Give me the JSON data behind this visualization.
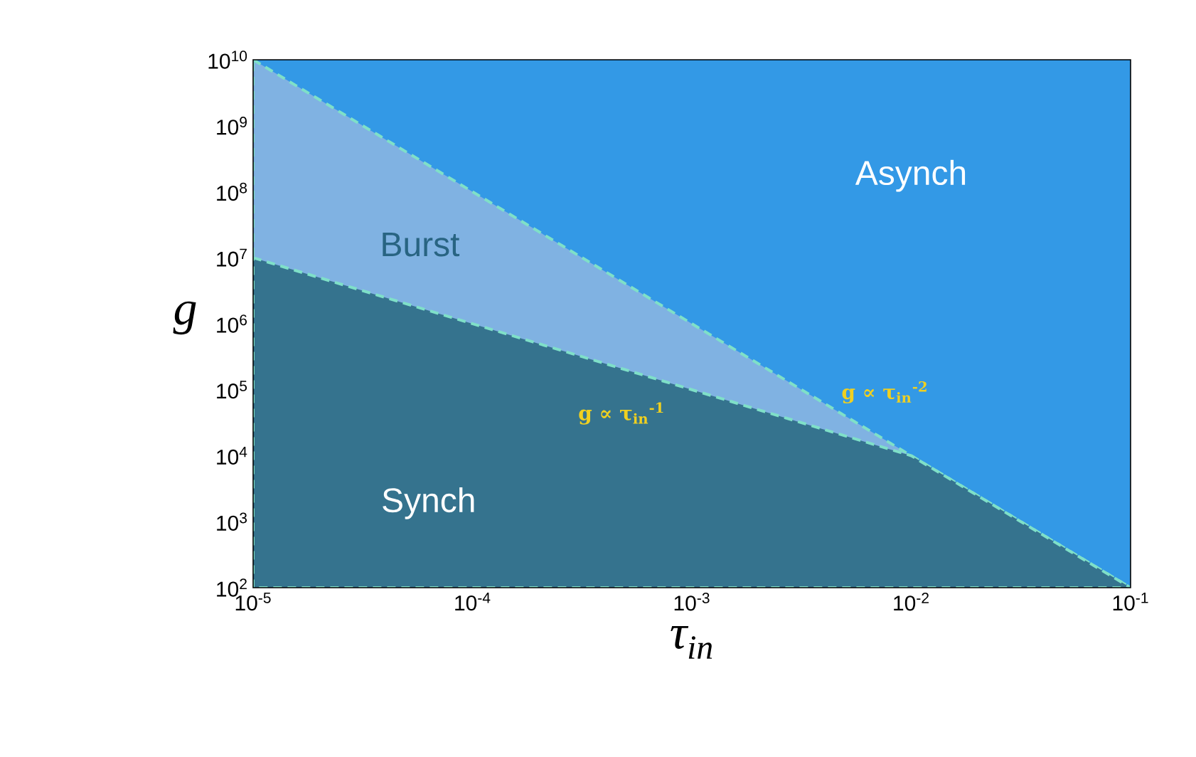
{
  "chart_data": {
    "type": "area",
    "log": "xy",
    "xlabel": "τ$_{in}$",
    "ylabel": "g",
    "x": [
      1e-05,
      0.01,
      0.1
    ],
    "series": [
      {
        "values": [
          10000000000,
          10000,
          100
        ],
        "color": "#80b2e2",
        "line_style": "dashed"
      },
      {
        "values": [
          10000000,
          10000,
          100
        ],
        "color": "#35738e",
        "line_style": "dashed"
      }
    ],
    "xlim": [
      1e-05,
      0.1
    ],
    "ylim": [
      100,
      10000000000
    ],
    "xticks": [
      {
        "value": 1e-05,
        "label": "10$^{-5}$"
      },
      {
        "value": 0.0001,
        "label": "10$^{-4}$"
      },
      {
        "value": 0.001,
        "label": "10$^{-3}$"
      },
      {
        "value": 0.01,
        "label": "10$^{-2}$"
      },
      {
        "value": 0.1,
        "label": "10$^{-1}$"
      }
    ],
    "yticks": [
      {
        "value": 100,
        "label": "10$^{2}$"
      },
      {
        "value": 1000,
        "label": "10$^{3}$"
      },
      {
        "value": 10000,
        "label": "10$^{4}$"
      },
      {
        "value": 100000,
        "label": "10$^{5}$"
      },
      {
        "value": 1000000,
        "label": "10$^{6}$"
      },
      {
        "value": 10000000,
        "label": "10$^{7}$"
      },
      {
        "value": 100000000,
        "label": "10$^{8}$"
      },
      {
        "value": 1000000000,
        "label": "10$^{9}$"
      },
      {
        "value": 10000000000,
        "label": "10$^{10}$"
      }
    ],
    "grid": false,
    "annotations": [
      "Asynch",
      "Burst",
      "Synch",
      "g ∝ τ$_{in}$$^{-1}$",
      "g ∝ τ$_{in}$$^{-2}$"
    ]
  }
}
